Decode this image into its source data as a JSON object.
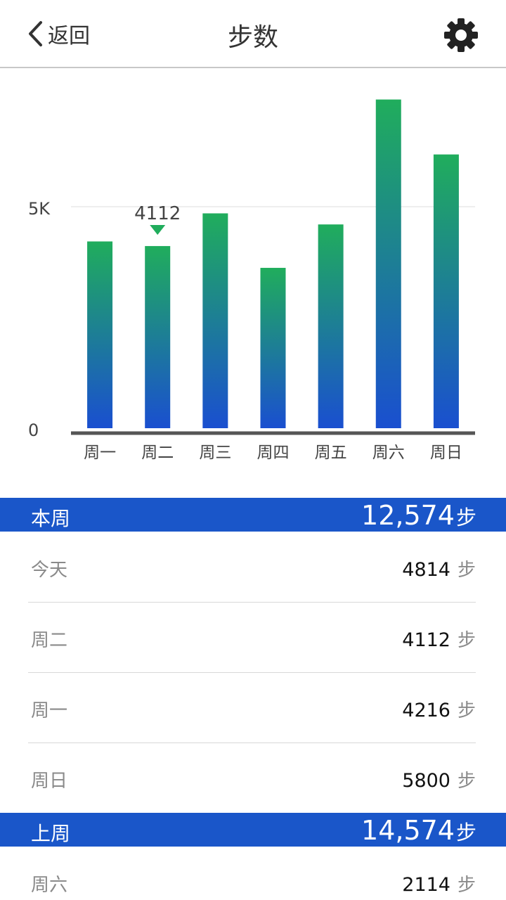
{
  "header": {
    "back_label": "返回",
    "title": "步数"
  },
  "chart_data": {
    "type": "bar",
    "categories": [
      "周一",
      "周二",
      "周三",
      "周四",
      "周五",
      "周六",
      "周日"
    ],
    "values": [
      4216,
      4112,
      4850,
      3620,
      4600,
      7420,
      6180
    ],
    "ylim": [
      0,
      10000
    ],
    "yticks": [
      {
        "value": 0,
        "label": "0"
      },
      {
        "value": 5000,
        "label": "5K"
      }
    ],
    "highlight": {
      "index": 1,
      "label": "4112"
    },
    "colors": {
      "bar_top": "#20ad5c",
      "bar_bottom": "#1a4fd0",
      "marker": "#20ad5c",
      "axis": "#555555",
      "grid": "#dddddd"
    }
  },
  "this_week": {
    "label": "本周",
    "total": "12,574",
    "unit": "步",
    "rows": [
      {
        "label": "今天",
        "value": "4814",
        "unit": "步"
      },
      {
        "label": "周二",
        "value": "4112",
        "unit": "步"
      },
      {
        "label": "周一",
        "value": "4216",
        "unit": "步"
      },
      {
        "label": "周日",
        "value": "5800",
        "unit": "步"
      }
    ]
  },
  "last_week": {
    "label": "上周",
    "total": "14,574",
    "unit": "步",
    "rows": [
      {
        "label": "周六",
        "value": "2114",
        "unit": "步"
      }
    ]
  },
  "colors": {
    "accent": "#1a56c9"
  }
}
